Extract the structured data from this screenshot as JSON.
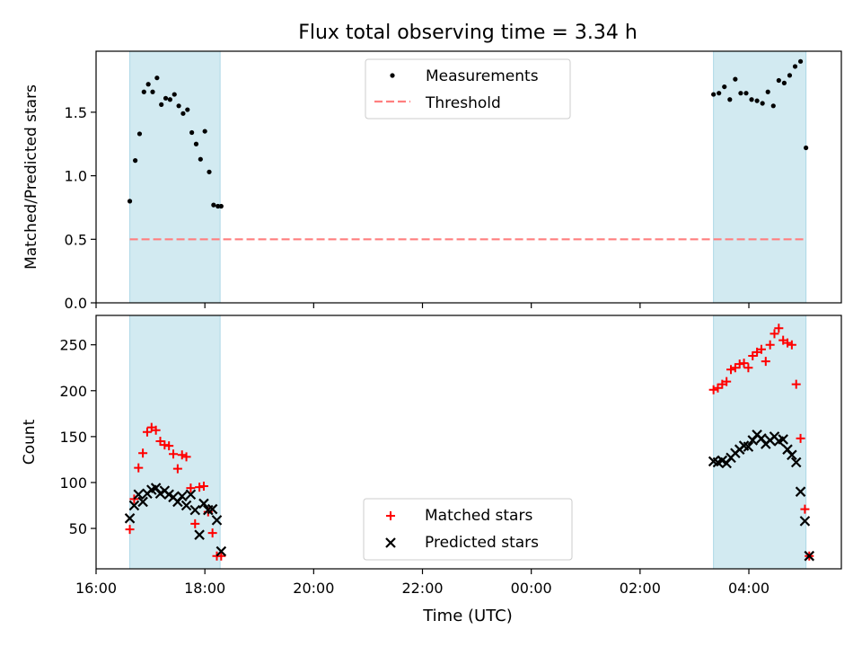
{
  "title": "Flux total observing time = 3.34 h",
  "colors": {
    "shade": "#add8e6",
    "threshold": "#ff7f7f",
    "measurement": "#000000",
    "matched": "#ff0000",
    "predicted": "#000000"
  },
  "x_axis": {
    "label": "Time (UTC)",
    "ticks": [
      {
        "t": 0,
        "label": "16:00"
      },
      {
        "t": 2,
        "label": "18:00"
      },
      {
        "t": 4,
        "label": "20:00"
      },
      {
        "t": 6,
        "label": "22:00"
      },
      {
        "t": 8,
        "label": "00:00"
      },
      {
        "t": 10,
        "label": "02:00"
      },
      {
        "t": 12,
        "label": "04:00"
      }
    ]
  },
  "chart_data": [
    {
      "type": "scatter",
      "ylabel": "Matched/Predicted stars",
      "ylim": [
        0,
        1.98
      ],
      "xlim": [
        0,
        13.7
      ],
      "yticks": [
        {
          "v": 0.0,
          "label": "0.0"
        },
        {
          "v": 0.5,
          "label": "0.5"
        },
        {
          "v": 1.0,
          "label": "1.0"
        },
        {
          "v": 1.5,
          "label": "1.5"
        }
      ],
      "shaded_spans": [
        [
          0.62,
          2.28
        ],
        [
          11.35,
          13.05
        ]
      ],
      "threshold": {
        "name": "Threshold",
        "y": 0.5,
        "x_range": [
          0.62,
          13.05
        ]
      },
      "legend": {
        "placement": "upper center",
        "entries": [
          "Measurements",
          "Threshold"
        ]
      },
      "series": [
        {
          "name": "Measurements",
          "x": [
            0.62,
            0.72,
            0.8,
            0.88,
            0.96,
            1.04,
            1.12,
            1.2,
            1.28,
            1.36,
            1.44,
            1.52,
            1.6,
            1.68,
            1.76,
            1.84,
            1.92,
            2.0,
            2.08,
            2.16,
            2.24,
            2.3,
            11.35,
            11.45,
            11.55,
            11.65,
            11.75,
            11.85,
            11.95,
            12.05,
            12.15,
            12.25,
            12.35,
            12.45,
            12.55,
            12.65,
            12.75,
            12.85,
            12.95,
            13.05
          ],
          "y": [
            0.8,
            1.12,
            1.33,
            1.66,
            1.72,
            1.66,
            1.77,
            1.56,
            1.61,
            1.6,
            1.64,
            1.55,
            1.49,
            1.52,
            1.34,
            1.25,
            1.13,
            1.35,
            1.03,
            0.77,
            0.76,
            0.76,
            1.64,
            1.65,
            1.7,
            1.6,
            1.76,
            1.65,
            1.65,
            1.6,
            1.59,
            1.57,
            1.66,
            1.55,
            1.75,
            1.73,
            1.79,
            1.86,
            1.9,
            1.22
          ]
        }
      ]
    },
    {
      "type": "scatter",
      "ylabel": "Count",
      "ylim": [
        6,
        282
      ],
      "xlim": [
        0,
        13.7
      ],
      "yticks": [
        {
          "v": 50,
          "label": "50"
        },
        {
          "v": 100,
          "label": "100"
        },
        {
          "v": 150,
          "label": "150"
        },
        {
          "v": 200,
          "label": "200"
        },
        {
          "v": 250,
          "label": "250"
        }
      ],
      "shaded_spans": [
        [
          0.62,
          2.28
        ],
        [
          11.35,
          13.05
        ]
      ],
      "legend": {
        "placement": "lower center",
        "entries": [
          "Matched stars",
          "Predicted stars"
        ]
      },
      "series": [
        {
          "name": "Matched stars",
          "marker": "plus",
          "x": [
            0.62,
            0.7,
            0.78,
            0.86,
            0.94,
            1.02,
            1.1,
            1.18,
            1.26,
            1.34,
            1.42,
            1.5,
            1.58,
            1.66,
            1.74,
            1.82,
            1.9,
            1.98,
            2.06,
            2.14,
            2.22,
            2.3,
            11.35,
            11.43,
            11.51,
            11.59,
            11.67,
            11.75,
            11.83,
            11.91,
            11.99,
            12.07,
            12.15,
            12.23,
            12.31,
            12.39,
            12.47,
            12.55,
            12.63,
            12.71,
            12.79,
            12.87,
            12.95,
            13.03,
            13.11
          ],
          "y": [
            49,
            82,
            116,
            132,
            155,
            160,
            157,
            145,
            141,
            140,
            131,
            115,
            130,
            128,
            94,
            55,
            95,
            96,
            68,
            45,
            20,
            20,
            201,
            203,
            207,
            210,
            223,
            225,
            229,
            230,
            225,
            238,
            242,
            245,
            232,
            250,
            262,
            268,
            255,
            252,
            250,
            207,
            148,
            71,
            20
          ],
          "y_keep_note": ""
        },
        {
          "name": "Predicted stars",
          "marker": "x",
          "x": [
            0.62,
            0.7,
            0.78,
            0.86,
            0.94,
            1.02,
            1.1,
            1.18,
            1.26,
            1.34,
            1.42,
            1.5,
            1.58,
            1.66,
            1.74,
            1.82,
            1.9,
            1.98,
            2.06,
            2.14,
            2.22,
            2.3,
            11.35,
            11.43,
            11.51,
            11.59,
            11.67,
            11.75,
            11.83,
            11.91,
            11.99,
            12.07,
            12.15,
            12.23,
            12.31,
            12.39,
            12.47,
            12.55,
            12.63,
            12.71,
            12.79,
            12.87,
            12.95,
            13.03,
            13.11
          ],
          "y": [
            61,
            75,
            87,
            79,
            88,
            92,
            94,
            88,
            91,
            87,
            84,
            79,
            85,
            75,
            87,
            70,
            43,
            77,
            70,
            71,
            59,
            25,
            123,
            122,
            124,
            121,
            127,
            132,
            136,
            140,
            139,
            146,
            152,
            148,
            142,
            146,
            150,
            145,
            147,
            136,
            130,
            122,
            90,
            58,
            20
          ]
        }
      ]
    }
  ]
}
